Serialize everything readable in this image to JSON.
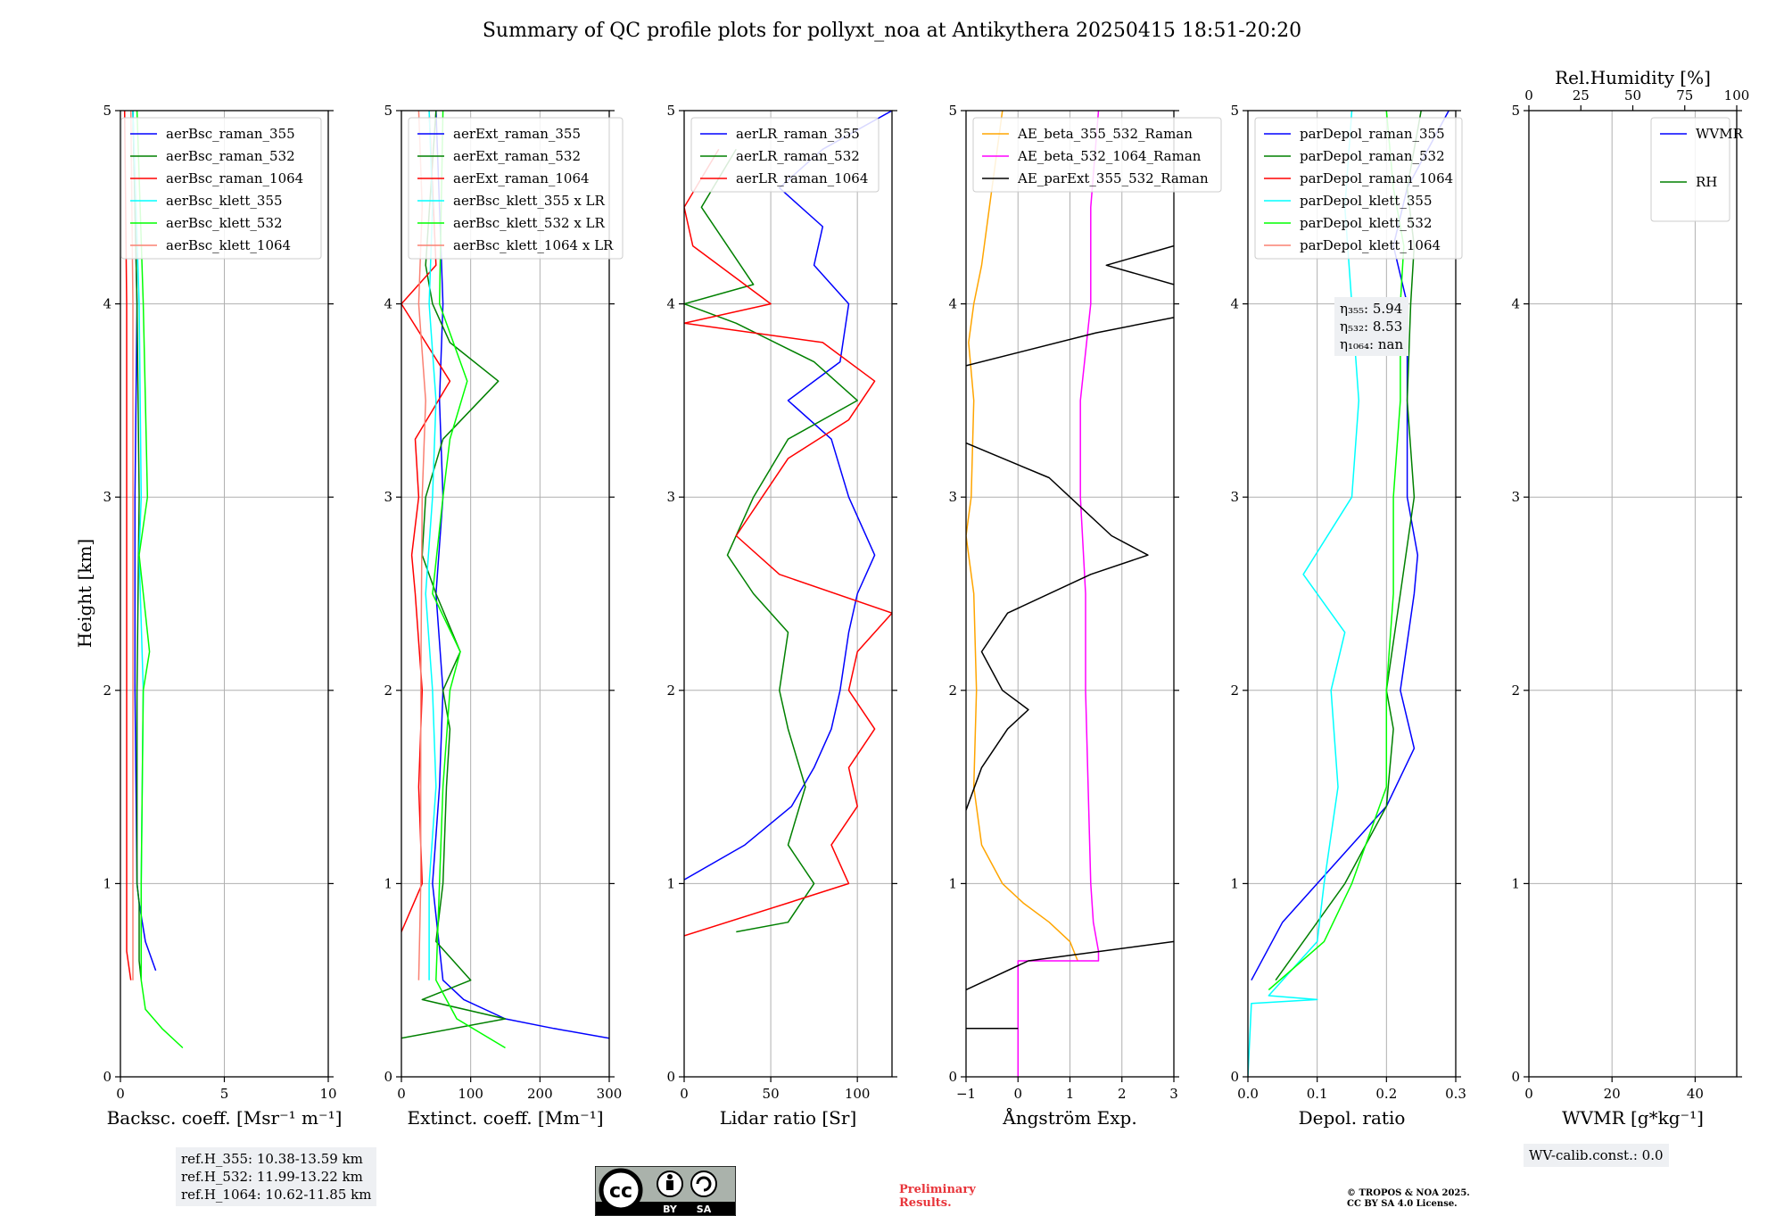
{
  "title": "Summary of QC profile plots for pollyxt_noa at Antikythera 20250415 18:51-20:20",
  "ylabel": "Height [km]",
  "colors": {
    "blue": "#0000ff",
    "green": "#008000",
    "red": "#ff0000",
    "cyan": "#00ffff",
    "lime": "#00ff00",
    "salmon": "#fa8072",
    "orange": "#ffa500",
    "magenta": "#ff00ff",
    "black": "#000000"
  },
  "chart_data": [
    {
      "type": "line",
      "id": "backscatter",
      "xlabel": "Backsc. coeff. [Msr⁻¹ m⁻¹]",
      "xlim": [
        0,
        10
      ],
      "ylim": [
        0,
        5
      ],
      "xticks": [
        "0",
        "5",
        "10"
      ],
      "xtick_values": [
        0,
        5,
        10
      ],
      "yticks": [
        "0",
        "1",
        "2",
        "3",
        "4",
        "5"
      ],
      "grid": true,
      "legend_position": "top-right",
      "series": [
        {
          "name": "aerBsc_raman_355",
          "color": "#0000ff",
          "y": [
            0.55,
            0.7,
            0.9,
            1.0,
            2.0,
            3.0,
            4.0,
            5.0
          ],
          "x": [
            1.7,
            1.2,
            0.9,
            0.8,
            0.7,
            0.7,
            0.8,
            0.6
          ]
        },
        {
          "name": "aerBsc_raman_532",
          "color": "#008000",
          "y": [
            0.5,
            0.6,
            0.9,
            1.0,
            2.0,
            3.0,
            4.0,
            5.0
          ],
          "x": [
            1.0,
            0.9,
            0.9,
            0.8,
            0.8,
            0.9,
            0.8,
            0.6
          ]
        },
        {
          "name": "aerBsc_raman_1064",
          "color": "#ff0000",
          "y": [
            0.5,
            0.65,
            1.0,
            2.0,
            3.0,
            4.0,
            5.0
          ],
          "x": [
            0.5,
            0.3,
            0.3,
            0.3,
            0.3,
            0.3,
            0.2
          ]
        },
        {
          "name": "aerBsc_klett_355",
          "color": "#00ffff",
          "y": [
            0.5,
            1.0,
            2.0,
            2.7,
            3.0,
            4.0,
            5.0
          ],
          "x": [
            1.0,
            1.0,
            1.1,
            0.9,
            1.0,
            0.9,
            0.6
          ]
        },
        {
          "name": "aerBsc_klett_532",
          "color": "#00ff00",
          "y": [
            0.15,
            0.25,
            0.35,
            0.5,
            1.0,
            2.0,
            2.2,
            2.7,
            3.0,
            3.5,
            4.0,
            5.0
          ],
          "x": [
            3.0,
            2.0,
            1.2,
            1.0,
            1.0,
            1.1,
            1.4,
            0.9,
            1.3,
            1.2,
            1.1,
            0.8
          ]
        },
        {
          "name": "aerBsc_klett_1064",
          "color": "#fa8072",
          "y": [
            0.5,
            1.0,
            2.0,
            3.0,
            4.0,
            5.0
          ],
          "x": [
            0.6,
            0.6,
            0.6,
            0.6,
            0.6,
            0.5
          ]
        }
      ],
      "info": [
        "ref.H_355: 10.38-13.59 km",
        "ref.H_532: 11.99-13.22 km",
        "ref.H_1064: 10.62-11.85 km"
      ]
    },
    {
      "type": "line",
      "id": "extinction",
      "xlabel": "Extinct. coeff. [Mm⁻¹]",
      "xlim": [
        0,
        300
      ],
      "ylim": [
        0,
        5
      ],
      "xticks": [
        "0",
        "100",
        "200",
        "300"
      ],
      "xtick_values": [
        0,
        100,
        200,
        300
      ],
      "yticks": [
        "0",
        "1",
        "2",
        "3",
        "4",
        "5"
      ],
      "grid": true,
      "legend_position": "top-right",
      "series": [
        {
          "name": "aerExt_raman_355",
          "color": "#0000ff",
          "y": [
            0.2,
            0.25,
            0.3,
            0.4,
            0.5,
            1.0,
            1.5,
            2.0,
            2.5,
            3.0,
            3.5,
            4.0,
            4.5,
            5.0
          ],
          "x": [
            300,
            220,
            150,
            90,
            60,
            45,
            55,
            60,
            50,
            60,
            55,
            60,
            55,
            50
          ]
        },
        {
          "name": "aerExt_raman_532",
          "color": "#008000",
          "y": [
            0.2,
            0.3,
            0.4,
            0.5,
            0.7,
            1.0,
            1.5,
            1.8,
            2.0,
            2.2,
            2.5,
            2.7,
            3.0,
            3.3,
            3.6,
            3.8,
            4.0,
            4.2,
            5.0
          ],
          "x": [
            0,
            150,
            30,
            100,
            50,
            60,
            65,
            70,
            60,
            85,
            50,
            30,
            35,
            60,
            140,
            70,
            45,
            35,
            50
          ]
        },
        {
          "name": "aerExt_raman_1064",
          "color": "#ff0000",
          "y": [
            0.75,
            1.0,
            1.5,
            2.0,
            2.5,
            2.7,
            3.0,
            3.3,
            3.6,
            4.0,
            4.2,
            5.0
          ],
          "x": [
            0,
            30,
            25,
            30,
            20,
            15,
            25,
            20,
            70,
            0,
            50,
            40
          ]
        },
        {
          "name": "aerBsc_klett_355 x LR",
          "color": "#00ffff",
          "y": [
            0.5,
            1.0,
            1.5,
            2.0,
            2.5,
            3.0,
            3.5,
            4.0,
            4.5,
            5.0
          ],
          "x": [
            40,
            40,
            50,
            45,
            35,
            45,
            50,
            40,
            45,
            40
          ]
        },
        {
          "name": "aerBsc_klett_532 x LR",
          "color": "#00ff00",
          "y": [
            0.15,
            0.3,
            0.5,
            1.0,
            1.5,
            2.0,
            2.2,
            2.5,
            3.0,
            3.3,
            3.6,
            4.0,
            5.0
          ],
          "x": [
            150,
            80,
            50,
            55,
            60,
            70,
            85,
            45,
            60,
            70,
            95,
            55,
            60
          ]
        },
        {
          "name": "aerBsc_klett_1064 x LR",
          "color": "#fa8072",
          "y": [
            0.5,
            1.0,
            2.0,
            3.0,
            3.5,
            4.0,
            4.5,
            5.0
          ],
          "x": [
            25,
            28,
            28,
            30,
            35,
            25,
            30,
            25
          ]
        }
      ]
    },
    {
      "type": "line",
      "id": "lidar_ratio",
      "xlabel": "Lidar ratio [Sr]",
      "xlim": [
        0,
        120
      ],
      "ylim": [
        0,
        5
      ],
      "xticks": [
        "0",
        "50",
        "100"
      ],
      "xtick_values": [
        0,
        50,
        100
      ],
      "yticks": [
        "0",
        "1",
        "2",
        "3",
        "4",
        "5"
      ],
      "grid": true,
      "legend_position": "top-left",
      "series": [
        {
          "name": "aerLR_raman_355",
          "color": "#0000ff",
          "y": [
            1.02,
            1.2,
            1.4,
            1.6,
            1.8,
            2.0,
            2.3,
            2.5,
            2.7,
            3.0,
            3.3,
            3.5,
            3.7,
            4.0,
            4.2,
            4.4,
            4.6,
            4.8,
            5.0
          ],
          "x": [
            0,
            35,
            62,
            75,
            85,
            90,
            95,
            100,
            110,
            95,
            85,
            60,
            90,
            95,
            75,
            80,
            55,
            80,
            120
          ]
        },
        {
          "name": "aerLR_raman_532",
          "color": "#008000",
          "y": [
            0.75,
            0.8,
            1.0,
            1.2,
            1.5,
            1.8,
            2.0,
            2.3,
            2.5,
            2.7,
            3.0,
            3.3,
            3.5,
            3.7,
            3.9,
            4.0,
            4.1,
            4.3,
            4.5,
            4.8
          ],
          "x": [
            30,
            60,
            75,
            60,
            70,
            60,
            55,
            60,
            40,
            25,
            40,
            60,
            100,
            75,
            30,
            0,
            40,
            25,
            10,
            30
          ]
        },
        {
          "name": "aerLR_raman_1064",
          "color": "#ff0000",
          "y": [
            0.73,
            0.9,
            1.0,
            1.2,
            1.4,
            1.6,
            1.8,
            2.0,
            2.2,
            2.4,
            2.6,
            2.8,
            3.0,
            3.2,
            3.4,
            3.6,
            3.8,
            3.9,
            4.0,
            4.3,
            4.5,
            4.8
          ],
          "x": [
            0,
            60,
            95,
            85,
            100,
            95,
            110,
            95,
            100,
            120,
            55,
            30,
            45,
            60,
            95,
            110,
            80,
            0,
            50,
            5,
            0,
            20
          ]
        }
      ]
    },
    {
      "type": "line",
      "id": "angstrom",
      "xlabel": "Ångström Exp.",
      "xlim": [
        -1,
        3
      ],
      "ylim": [
        0,
        5
      ],
      "xticks": [
        "−1",
        "0",
        "1",
        "2",
        "3"
      ],
      "xtick_values": [
        -1,
        0,
        1,
        2,
        3
      ],
      "yticks": [
        "0",
        "1",
        "2",
        "3",
        "4",
        "5"
      ],
      "grid": true,
      "legend_position": "top-right",
      "series": [
        {
          "name": "AE_beta_355_532_Raman",
          "color": "#ffa500",
          "y": [
            0.6,
            0.7,
            0.8,
            0.9,
            1.0,
            1.2,
            1.5,
            2.0,
            2.5,
            2.8,
            3.0,
            3.5,
            3.8,
            4.0,
            4.2,
            4.5,
            4.8,
            5.0
          ],
          "x": [
            1.15,
            1.0,
            0.6,
            0.1,
            -0.3,
            -0.7,
            -0.85,
            -0.8,
            -0.85,
            -1.0,
            -0.9,
            -0.85,
            -0.95,
            -0.85,
            -0.7,
            -0.55,
            -0.4,
            -0.3
          ]
        },
        {
          "name": "AE_beta_532_1064_Raman",
          "color": "#ff00ff",
          "y": [
            0.0,
            0.6,
            0.6,
            0.65,
            0.8,
            1.0,
            2.0,
            2.5,
            3.0,
            3.5,
            4.0,
            4.5,
            5.0
          ],
          "x": [
            0.0,
            0.0,
            1.55,
            1.55,
            1.45,
            1.4,
            1.3,
            1.3,
            1.2,
            1.2,
            1.4,
            1.4,
            1.55
          ]
        },
        {
          "name": "AE_parExt_355_532_Raman",
          "color": "#000000",
          "y": [
            0.25,
            0.25,
            null,
            0.45,
            0.6,
            0.7,
            null,
            1.38,
            1.6,
            1.8,
            1.9,
            2.0,
            2.2,
            2.4,
            2.6,
            2.7,
            2.8,
            3.0,
            3.1,
            3.28,
            null,
            3.68,
            3.85,
            3.93,
            null,
            4.1,
            4.2,
            4.3
          ],
          "x": [
            -1.0,
            0.0,
            null,
            -1.0,
            0.2,
            3.0,
            null,
            -1.0,
            -0.7,
            -0.2,
            0.2,
            -0.3,
            -0.7,
            -0.2,
            1.4,
            2.5,
            1.8,
            1.0,
            0.6,
            -1.0,
            null,
            -1.0,
            1.5,
            3.0,
            null,
            3.0,
            1.7,
            3.0
          ]
        }
      ]
    },
    {
      "type": "line",
      "id": "depolarization",
      "xlabel": "Depol. ratio",
      "xlim": [
        0,
        0.3
      ],
      "ylim": [
        0,
        5
      ],
      "xticks": [
        "0.0",
        "0.1",
        "0.2",
        "0.3"
      ],
      "xtick_values": [
        0,
        0.1,
        0.2,
        0.3
      ],
      "yticks": [
        "0",
        "1",
        "2",
        "3",
        "4",
        "5"
      ],
      "grid": true,
      "legend_position": "top-left",
      "series": [
        {
          "name": "parDepol_raman_355",
          "color": "#0000ff",
          "y": [
            0.5,
            0.8,
            1.0,
            1.4,
            1.7,
            2.0,
            2.5,
            2.7,
            3.0,
            3.5,
            4.0,
            4.3,
            4.6,
            5.0
          ],
          "x": [
            0.005,
            0.05,
            0.1,
            0.2,
            0.24,
            0.22,
            0.24,
            0.245,
            0.23,
            0.23,
            0.23,
            0.21,
            0.23,
            0.29
          ]
        },
        {
          "name": "parDepol_raman_532",
          "color": "#008000",
          "y": [
            0.5,
            0.8,
            1.0,
            1.4,
            1.8,
            2.0,
            2.5,
            3.0,
            3.5,
            4.0,
            4.3,
            4.6,
            5.0
          ],
          "x": [
            0.04,
            0.1,
            0.14,
            0.2,
            0.21,
            0.2,
            0.22,
            0.24,
            0.23,
            0.235,
            0.24,
            0.23,
            0.25
          ]
        },
        {
          "name": "parDepol_raman_1064",
          "color": "#ff0000",
          "y": [],
          "x": []
        },
        {
          "name": "parDepol_klett_355",
          "color": "#00ffff",
          "y": [
            0.0,
            0.38,
            0.4,
            0.42,
            0.7,
            1.0,
            1.5,
            2.0,
            2.3,
            2.6,
            3.0,
            3.5,
            4.0,
            4.5,
            5.0
          ],
          "x": [
            0.0,
            0.005,
            0.1,
            0.03,
            0.1,
            0.11,
            0.13,
            0.12,
            0.14,
            0.08,
            0.15,
            0.16,
            0.15,
            0.14,
            0.15
          ]
        },
        {
          "name": "parDepol_klett_532",
          "color": "#00ff00",
          "y": [
            0.45,
            0.7,
            1.0,
            1.5,
            2.0,
            2.5,
            3.0,
            3.5,
            4.0,
            4.3,
            4.6,
            5.0
          ],
          "x": [
            0.03,
            0.11,
            0.15,
            0.2,
            0.2,
            0.21,
            0.21,
            0.22,
            0.22,
            0.225,
            0.21,
            0.2
          ]
        },
        {
          "name": "parDepol_klett_1064",
          "color": "#fa8072",
          "y": [],
          "x": []
        }
      ],
      "info": [
        "η₃₅₅: 5.94",
        "η₅₃₂: 8.53",
        "η₁₀₆₄: nan"
      ]
    },
    {
      "type": "line",
      "id": "wvmr",
      "xlabel": "WVMR [g*kg⁻¹]",
      "x2label": "Rel.Humidity [%]",
      "xlim": [
        0,
        50
      ],
      "ylim": [
        0,
        5
      ],
      "xticks": [
        "0",
        "20",
        "40"
      ],
      "xtick_values": [
        0,
        20,
        40
      ],
      "x2ticks": [
        "0",
        "25",
        "50",
        "75",
        "100"
      ],
      "x2tick_values": [
        0,
        25,
        50,
        75,
        100
      ],
      "yticks": [
        "0",
        "1",
        "2",
        "3",
        "4",
        "5"
      ],
      "grid": true,
      "legend_position": "top-right",
      "series": [
        {
          "name": "WVMR",
          "color": "#0000ff",
          "y": [],
          "x": []
        },
        {
          "name": "RH",
          "color": "#008000",
          "y": [],
          "x": []
        }
      ],
      "info": [
        "WV-calib.const.: 0.0"
      ]
    }
  ],
  "footer": {
    "preliminary_line1": "Preliminary",
    "preliminary_line2": "Results.",
    "copyright_line1": "© TROPOS & NOA 2025.",
    "copyright_line2": "CC BY SA 4.0 License.",
    "cc_badge": "cc",
    "cc_by": "BY",
    "cc_sa": "SA"
  }
}
